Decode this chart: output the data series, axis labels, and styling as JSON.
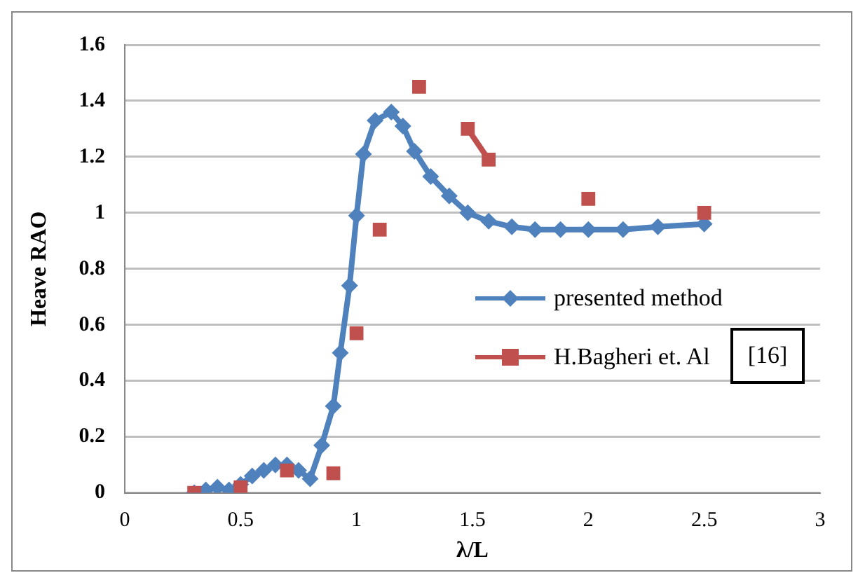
{
  "chart_data": {
    "type": "line",
    "xlabel": "λ/L",
    "ylabel": "Heave RAO",
    "annotations": [
      "[16]"
    ],
    "xlim": [
      0,
      3
    ],
    "xticks": [
      0,
      0.5,
      1,
      1.5,
      2,
      2.5,
      3
    ],
    "ylim": [
      0,
      1.6
    ],
    "yticks": [
      0,
      0.2,
      0.4,
      0.6,
      0.8,
      1,
      1.2,
      1.4,
      1.6
    ],
    "grid": "y",
    "legend": "right",
    "line_style": "solid",
    "series": [
      {
        "name": "presented method",
        "color": "#4f81bd",
        "marker": "diamond",
        "x": [
          0.3,
          0.35,
          0.4,
          0.45,
          0.5,
          0.55,
          0.6,
          0.65,
          0.7,
          0.75,
          0.8,
          0.85,
          0.9,
          0.93,
          0.97,
          1.0,
          1.03,
          1.08,
          1.15,
          1.2,
          1.25,
          1.32,
          1.4,
          1.48,
          1.57,
          1.67,
          1.77,
          1.88,
          2.0,
          2.15,
          2.3,
          2.5
        ],
        "values": [
          0,
          0.01,
          0.02,
          0.01,
          0.03,
          0.06,
          0.08,
          0.1,
          0.1,
          0.08,
          0.05,
          0.17,
          0.31,
          0.5,
          0.74,
          0.99,
          1.21,
          1.33,
          1.36,
          1.31,
          1.22,
          1.13,
          1.06,
          1.0,
          0.97,
          0.95,
          0.94,
          0.94,
          0.94,
          0.94,
          0.95,
          0.96
        ]
      },
      {
        "name": "H.Bagheri et. Al",
        "color": "#c0504d",
        "marker": "square",
        "x": [
          0.3,
          0.4,
          0.5,
          0.6,
          0.7,
          0.8,
          0.9,
          0.95,
          1.0,
          1.05,
          1.1,
          1.2,
          1.27,
          1.4,
          1.48,
          1.57,
          1.8,
          2.0,
          2.2,
          2.5
        ],
        "values": [
          0,
          null,
          0.02,
          null,
          0.08,
          null,
          0.07,
          null,
          0.57,
          null,
          0.94,
          null,
          1.45,
          null,
          1.3,
          1.19,
          null,
          1.05,
          null,
          1.0
        ]
      }
    ]
  }
}
